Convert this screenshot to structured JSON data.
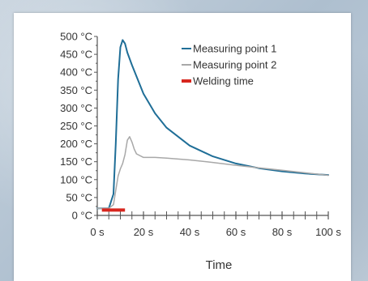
{
  "chart_data": {
    "type": "line",
    "xlabel": "Time",
    "ylabel": "",
    "xlim": [
      0,
      100
    ],
    "ylim": [
      0,
      500
    ],
    "x_ticks": [
      0,
      20,
      40,
      60,
      80,
      100
    ],
    "x_tick_labels": [
      "0 s",
      "20 s",
      "40 s",
      "60 s",
      "80 s",
      "100 s"
    ],
    "y_ticks": [
      0,
      50,
      100,
      150,
      200,
      250,
      300,
      350,
      400,
      450,
      500
    ],
    "y_tick_labels": [
      "0 °C",
      "50 °C",
      "100 °C",
      "150 °C",
      "200 °C",
      "250 °C",
      "300 °C",
      "350 °C",
      "400 °C",
      "450 °C",
      "500 °C"
    ],
    "grid": false,
    "legend_position": "top-right",
    "series": [
      {
        "name": "Measuring point 1",
        "color": "#1f6e97",
        "x": [
          0,
          5,
          7,
          8,
          9,
          10,
          11,
          12,
          13,
          15,
          20,
          25,
          30,
          40,
          50,
          60,
          70,
          80,
          90,
          100
        ],
        "y": [
          20,
          20,
          60,
          200,
          380,
          470,
          490,
          480,
          455,
          420,
          340,
          285,
          245,
          195,
          165,
          145,
          132,
          123,
          117,
          113
        ]
      },
      {
        "name": "Measuring point 2",
        "color": "#a8a8a8",
        "x": [
          0,
          5,
          7,
          8,
          9,
          10,
          11,
          12,
          13,
          14,
          15,
          16,
          17,
          20,
          25,
          30,
          40,
          50,
          60,
          70,
          80,
          90,
          100
        ],
        "y": [
          20,
          20,
          30,
          70,
          110,
          130,
          145,
          170,
          210,
          220,
          205,
          185,
          172,
          162,
          162,
          160,
          155,
          148,
          140,
          133,
          126,
          119,
          112
        ]
      },
      {
        "name": "Welding time",
        "color": "#d7261e",
        "x": [
          2,
          12
        ],
        "y": [
          15,
          15
        ]
      }
    ]
  }
}
